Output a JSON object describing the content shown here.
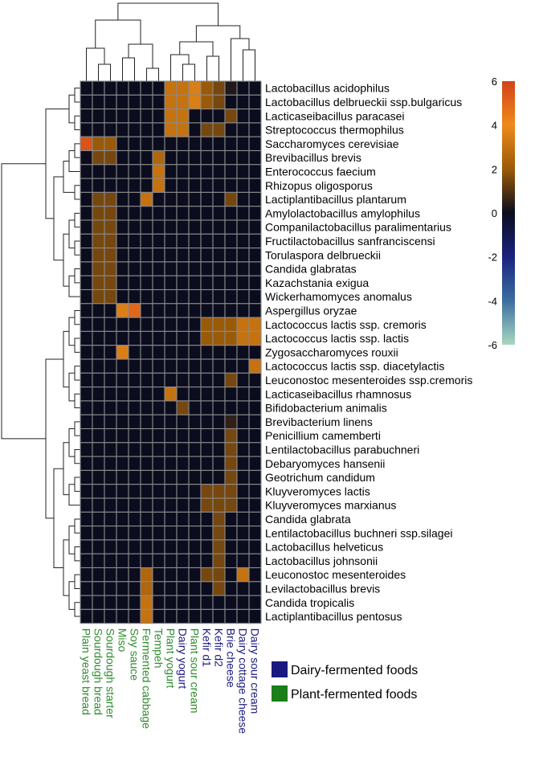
{
  "chart_data": {
    "type": "heatmap",
    "title": "",
    "color_scale": {
      "min": -6,
      "max": 6,
      "ticks": [
        6,
        4,
        2,
        0,
        -2,
        -4,
        -6
      ],
      "stops": [
        {
          "value": -6,
          "color": "#a8d8c0"
        },
        {
          "value": -4,
          "color": "#3c6ea0"
        },
        {
          "value": -2,
          "color": "#1a237e"
        },
        {
          "value": 0,
          "color": "#0b0d1e"
        },
        {
          "value": 2,
          "color": "#9a5a08"
        },
        {
          "value": 4,
          "color": "#ef8a1a"
        },
        {
          "value": 6,
          "color": "#d2421a"
        }
      ]
    },
    "columns": [
      {
        "label": "Plain yeast bread",
        "group": "plant"
      },
      {
        "label": "Sourdough bread",
        "group": "plant"
      },
      {
        "label": "Sourdough starter",
        "group": "plant"
      },
      {
        "label": "Miso",
        "group": "plant"
      },
      {
        "label": "Soy sauce",
        "group": "plant"
      },
      {
        "label": "Fermented cabbage",
        "group": "plant"
      },
      {
        "label": "Tempeh",
        "group": "plant"
      },
      {
        "label": "Plant yogurt",
        "group": "plant"
      },
      {
        "label": "Dairy yogurt",
        "group": "dairy"
      },
      {
        "label": "Plant sour cream",
        "group": "plant"
      },
      {
        "label": "Kefir d1",
        "group": "dairy"
      },
      {
        "label": "Kefir d2",
        "group": "dairy"
      },
      {
        "label": "Brie cheese",
        "group": "dairy"
      },
      {
        "label": "Dairy cottage cheese",
        "group": "dairy"
      },
      {
        "label": "Dairy sour cream",
        "group": "dairy"
      }
    ],
    "rows": [
      "Lactobacillus acidophilus",
      "Lactobacillus delbrueckii ssp.bulgaricus",
      "Lacticaseibacillus paracasei",
      "Streptococcus thermophilus",
      "Saccharomyces cerevisiae",
      "Brevibacillus brevis",
      "Enterococcus faecium",
      "Rhizopus oligosporus",
      "Lactiplantibacillus plantarum",
      "Amylolactobacillus amylophilus",
      "Companilactobacillus paralimentarius",
      "Fructilactobacillus sanfranciscensi",
      "Torulaspora delbrueckii",
      "Candida glabratas",
      "Kazachstania exigua",
      "Wickerhamomyces anomalus",
      "Aspergillus oryzae",
      "Lactococcus lactis ssp. cremoris",
      "Lactococcus lactis ssp. lactis",
      "Zygosaccharomyces rouxii",
      "Lactococcus lactis ssp. diacetylactis",
      "Leuconostoc mesenteroides ssp.cremoris",
      "Lacticaseibacillus rhamnosus",
      "Bifidobacterium animalis",
      "Brevibacterium linens",
      "Penicillium camemberti",
      "Lentilactobacillus parabuchneri",
      "Debaryomyces hansenii",
      "Geotrichum candidum",
      "Kluyveromyces lactis",
      "Kluyveromyces marxianus",
      "Candida glabrata",
      "Lentilactobacillus buchneri ssp.silagei",
      "Lactobacillus helveticus",
      "Lactobacillus johnsonii",
      "Leuconostoc mesenteroides",
      "Levilactobacillus brevis",
      "Candida tropicalis",
      "Lactiplantibacillus pentosus"
    ],
    "values": [
      [
        0,
        0,
        0,
        0,
        0,
        0,
        0,
        3,
        3,
        3.5,
        2,
        1.5,
        0.3,
        0,
        0
      ],
      [
        0,
        0,
        0,
        0,
        0,
        0,
        0,
        3,
        3,
        3.5,
        2,
        1.5,
        0,
        0,
        0
      ],
      [
        0,
        0,
        0,
        0,
        0,
        0,
        0,
        3,
        3,
        0,
        0,
        0,
        1.5,
        0,
        0
      ],
      [
        0,
        0,
        0,
        0,
        0,
        0,
        0,
        3,
        3,
        0,
        1.5,
        1.5,
        0,
        0,
        0
      ],
      [
        5.5,
        2,
        2,
        0,
        0,
        0,
        0,
        0,
        0,
        0,
        0,
        0,
        0,
        0,
        0
      ],
      [
        0,
        1.5,
        1.5,
        0,
        0,
        0,
        2.5,
        0,
        0,
        0,
        0,
        0,
        0,
        0,
        0
      ],
      [
        0,
        0,
        0,
        0,
        0,
        0,
        3,
        0,
        0,
        0,
        0,
        0,
        0,
        0,
        0
      ],
      [
        0,
        0,
        0,
        0,
        0,
        0,
        3,
        0,
        0,
        0,
        0,
        0,
        0,
        0,
        0
      ],
      [
        0,
        1.5,
        1.5,
        0,
        0,
        3,
        0,
        0,
        0,
        0,
        0,
        0,
        1.5,
        0,
        0
      ],
      [
        0,
        1.5,
        1.5,
        0,
        0,
        0,
        0,
        0,
        0,
        0,
        0,
        0,
        0,
        0,
        0
      ],
      [
        0,
        1.5,
        1.5,
        0,
        0,
        0,
        0,
        0,
        0,
        0,
        0,
        0,
        0,
        0,
        0
      ],
      [
        0,
        1.5,
        1.5,
        0,
        0,
        0,
        0,
        0,
        0,
        0,
        0,
        0,
        0,
        0,
        0
      ],
      [
        0,
        1.5,
        1.5,
        0,
        0,
        0,
        0,
        0,
        0,
        0,
        0,
        0,
        0,
        0,
        0
      ],
      [
        0,
        1.5,
        1.5,
        0,
        0,
        0,
        0,
        0,
        0,
        0,
        0,
        0,
        0,
        0,
        0
      ],
      [
        0,
        1.5,
        1.5,
        0,
        0,
        0,
        0,
        0,
        0,
        0,
        0,
        0,
        0,
        0,
        0
      ],
      [
        0,
        1.5,
        1.5,
        0,
        0,
        0,
        0,
        0,
        0,
        0,
        0,
        0,
        0,
        0,
        0
      ],
      [
        0,
        0,
        0,
        3.5,
        5,
        0,
        0,
        0,
        0,
        0,
        0,
        0,
        0,
        0,
        0
      ],
      [
        0,
        0,
        0,
        0,
        0,
        0,
        0,
        0,
        0,
        0,
        2,
        2,
        2,
        3,
        3
      ],
      [
        0,
        0,
        0,
        0,
        0,
        0,
        0,
        0,
        0,
        0,
        2,
        2,
        2,
        3,
        3
      ],
      [
        0,
        0,
        0,
        3.5,
        0,
        0,
        0,
        0,
        0,
        0,
        0,
        0,
        0,
        0,
        0
      ],
      [
        0,
        0,
        0,
        0,
        0,
        0,
        0,
        0,
        0,
        0,
        0,
        0,
        0,
        0,
        3
      ],
      [
        0,
        0,
        0,
        0,
        0,
        0,
        0,
        0,
        0,
        0,
        0,
        0,
        1.5,
        0,
        0
      ],
      [
        0,
        0,
        0,
        0,
        0,
        0,
        0,
        3,
        0,
        0,
        0,
        0,
        0,
        0,
        0
      ],
      [
        0,
        0,
        0,
        0,
        0,
        0,
        0,
        0,
        1.5,
        0,
        0,
        0,
        0,
        0,
        0
      ],
      [
        0,
        0,
        0,
        0,
        0,
        0,
        0,
        0,
        0,
        0,
        0,
        0,
        0.5,
        0,
        0
      ],
      [
        0,
        0,
        0,
        0,
        0,
        0,
        0,
        0,
        0,
        0,
        0,
        0,
        1.5,
        0,
        0
      ],
      [
        0,
        0,
        0,
        0,
        0,
        0,
        0,
        0,
        0,
        0,
        0,
        0,
        1.5,
        0,
        0
      ],
      [
        0,
        0,
        0,
        0,
        0,
        0,
        0,
        0,
        0,
        0,
        0,
        0,
        1.5,
        0,
        0
      ],
      [
        0,
        0,
        0,
        0,
        0,
        0,
        0,
        0,
        0,
        0,
        0,
        0,
        1.5,
        0,
        0
      ],
      [
        0,
        0,
        0,
        0,
        0,
        0,
        0,
        0,
        0,
        0,
        1.5,
        1.5,
        1.5,
        0,
        0
      ],
      [
        0,
        0,
        0,
        0,
        0,
        0,
        0,
        0,
        0,
        0,
        1.5,
        1.5,
        1.5,
        0,
        0
      ],
      [
        0,
        0,
        0,
        0,
        0,
        0,
        0,
        0,
        0,
        0,
        0,
        1.5,
        0,
        0,
        0
      ],
      [
        0,
        0,
        0,
        0,
        0,
        0,
        0,
        0,
        0,
        0,
        0,
        1.5,
        0,
        0,
        0
      ],
      [
        0,
        0,
        0,
        0,
        0,
        0,
        0,
        0,
        0,
        0,
        0,
        1.5,
        0,
        0,
        0
      ],
      [
        0,
        0,
        0,
        0,
        0,
        0,
        0,
        0,
        0,
        0,
        0,
        1.5,
        0,
        0,
        0
      ],
      [
        0,
        0,
        0,
        0,
        0,
        2.5,
        0,
        0,
        0,
        0,
        1.5,
        1.5,
        0,
        3,
        0
      ],
      [
        0,
        0,
        0,
        0,
        0,
        2.5,
        0,
        0,
        0,
        0,
        0,
        1.5,
        0,
        0,
        0
      ],
      [
        0,
        0,
        0,
        0,
        0,
        3,
        0,
        0,
        0,
        0,
        0,
        0,
        0,
        0,
        0
      ],
      [
        0,
        0,
        0,
        0,
        0,
        3,
        0,
        0,
        0,
        0,
        0,
        0,
        0,
        0,
        0
      ]
    ],
    "legend": [
      {
        "label": "Dairy-fermented foods",
        "group": "dairy",
        "color": "#1a1a7e"
      },
      {
        "label": "Plant-fermented foods",
        "group": "plant",
        "color": "#1a7e1a"
      }
    ],
    "label_colors": {
      "dairy": "#1a1a7e",
      "plant": "#2e8b2e"
    }
  }
}
